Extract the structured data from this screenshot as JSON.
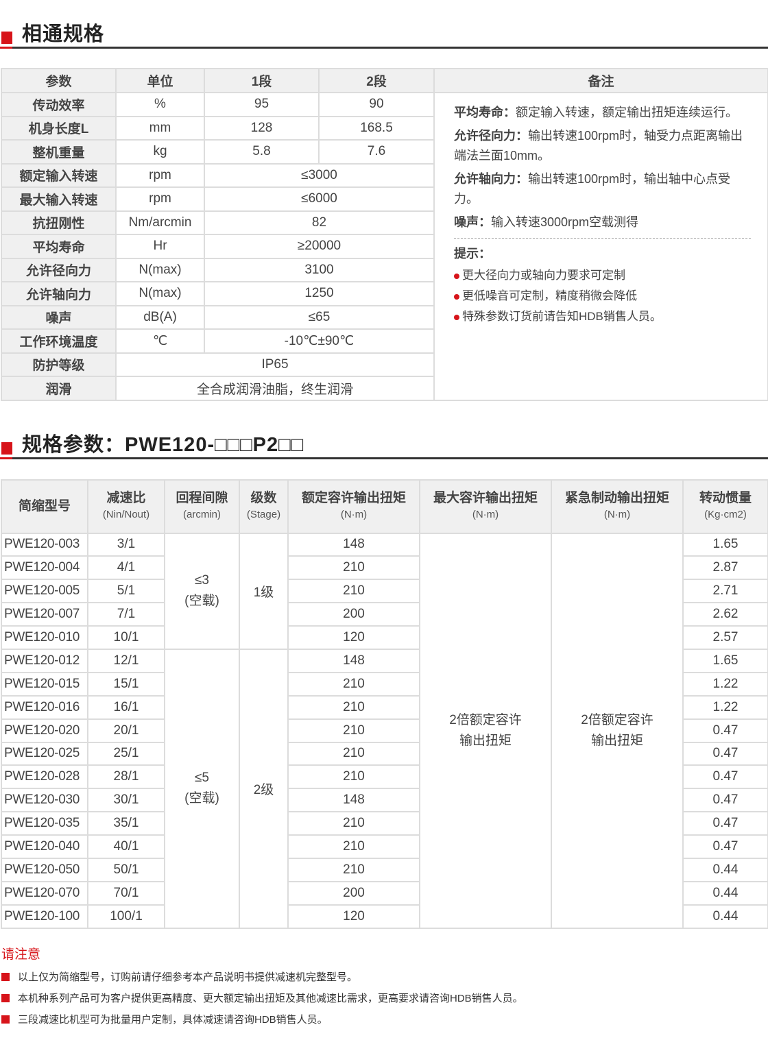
{
  "section1": {
    "title": "相通规格"
  },
  "table1": {
    "headers": [
      "参数",
      "单位",
      "1段",
      "2段",
      "备注"
    ],
    "rows": [
      {
        "param": "传动效率",
        "unit": "%",
        "s1": "95",
        "s2": "90"
      },
      {
        "param": "机身长度L",
        "unit": "mm",
        "s1": "128",
        "s2": "168.5"
      },
      {
        "param": "整机重量",
        "unit": "kg",
        "s1": "5.8",
        "s2": "7.6"
      },
      {
        "param": "额定输入转速",
        "unit": "rpm",
        "both": "≤3000"
      },
      {
        "param": "最大输入转速",
        "unit": "rpm",
        "both": "≤6000"
      },
      {
        "param": "抗扭刚性",
        "unit": "Nm/arcmin",
        "both": "82"
      },
      {
        "param": "平均寿命",
        "unit": "Hr",
        "both": "≥20000"
      },
      {
        "param": "允许径向力",
        "unit": "N(max)",
        "both": "3100"
      },
      {
        "param": "允许轴向力",
        "unit": "N(max)",
        "both": "1250"
      },
      {
        "param": "噪声",
        "unit": "dB(A)",
        "both": "≤65"
      },
      {
        "param": "工作环境温度",
        "unit": "℃",
        "both": "-10℃±90℃"
      },
      {
        "param": "防护等级",
        "all": "IP65"
      },
      {
        "param": "润滑",
        "all": "全合成润滑油脂，终生润滑"
      }
    ],
    "remarks": [
      {
        "label": "平均寿命：",
        "text": "额定输入转速，额定输出扭矩连续运行。"
      },
      {
        "label": "允许径向力：",
        "text": "输出转速100rpm时，轴受力点距离输出端法兰面10mm。"
      },
      {
        "label": "允许轴向力：",
        "text": "输出转速100rpm时，输出轴中心点受力。"
      },
      {
        "label": "噪声：",
        "text": "输入转速3000rpm空载测得"
      }
    ],
    "tips_title": "提示：",
    "tips": [
      "更大径向力或轴向力要求可定制",
      "更低噪音可定制，精度稍微会降低",
      "特殊参数订货前请告知HDB销售人员。"
    ]
  },
  "section2": {
    "title": "规格参数：PWE120-□□□P2□□"
  },
  "table2": {
    "headers": [
      {
        "main": "简缩型号",
        "sub": ""
      },
      {
        "main": "减速比",
        "sub": "(Nin/Nout)"
      },
      {
        "main": "回程间隙",
        "sub": "(arcmin)"
      },
      {
        "main": "级数",
        "sub": "(Stage)"
      },
      {
        "main": "额定容许输出扭矩",
        "sub": "(N·m)"
      },
      {
        "main": "最大容许输出扭矩",
        "sub": "(N·m)"
      },
      {
        "main": "紧急制动输出扭矩",
        "sub": "(N·m)"
      },
      {
        "main": "转动惯量",
        "sub": "(Kg·cm2)"
      }
    ],
    "backlash": [
      {
        "value": "≤3",
        "note": "(空载)"
      },
      {
        "value": "≤5",
        "note": "(空载)"
      }
    ],
    "stages": [
      "1级",
      "2级"
    ],
    "max_torque": "2倍额定容许输出扭矩",
    "emergency_torque": "2倍额定容许输出扭矩",
    "rows": [
      {
        "model": "PWE120-003",
        "ratio": "3/1",
        "torque": "148",
        "inertia": "1.65"
      },
      {
        "model": "PWE120-004",
        "ratio": "4/1",
        "torque": "210",
        "inertia": "2.87"
      },
      {
        "model": "PWE120-005",
        "ratio": "5/1",
        "torque": "210",
        "inertia": "2.71"
      },
      {
        "model": "PWE120-007",
        "ratio": "7/1",
        "torque": "200",
        "inertia": "2.62"
      },
      {
        "model": "PWE120-010",
        "ratio": "10/1",
        "torque": "120",
        "inertia": "2.57"
      },
      {
        "model": "PWE120-012",
        "ratio": "12/1",
        "torque": "148",
        "inertia": "1.65"
      },
      {
        "model": "PWE120-015",
        "ratio": "15/1",
        "torque": "210",
        "inertia": "1.22"
      },
      {
        "model": "PWE120-016",
        "ratio": "16/1",
        "torque": "210",
        "inertia": "1.22"
      },
      {
        "model": "PWE120-020",
        "ratio": "20/1",
        "torque": "210",
        "inertia": "0.47"
      },
      {
        "model": "PWE120-025",
        "ratio": "25/1",
        "torque": "210",
        "inertia": "0.47"
      },
      {
        "model": "PWE120-028",
        "ratio": "28/1",
        "torque": "210",
        "inertia": "0.47"
      },
      {
        "model": "PWE120-030",
        "ratio": "30/1",
        "torque": "148",
        "inertia": "0.47"
      },
      {
        "model": "PWE120-035",
        "ratio": "35/1",
        "torque": "210",
        "inertia": "0.47"
      },
      {
        "model": "PWE120-040",
        "ratio": "40/1",
        "torque": "210",
        "inertia": "0.47"
      },
      {
        "model": "PWE120-050",
        "ratio": "50/1",
        "torque": "210",
        "inertia": "0.44"
      },
      {
        "model": "PWE120-070",
        "ratio": "70/1",
        "torque": "200",
        "inertia": "0.44"
      },
      {
        "model": "PWE120-100",
        "ratio": "100/1",
        "torque": "120",
        "inertia": "0.44"
      }
    ]
  },
  "notes": {
    "title": "请注意",
    "items": [
      "以上仅为简缩型号，订购前请仔细参考本产品说明书提供减速机完整型号。",
      "本机种系列产品可为客户提供更高精度、更大额定输出扭矩及其他减速比需求，更高要求请咨询HDB销售人员。",
      "三段减速比机型可为批量用户定制，具体减速请咨询HDB销售人员。"
    ]
  },
  "colors": {
    "accent": "#d7141a",
    "header_bg": "#f0f0f0",
    "border": "#dcdcdc"
  }
}
